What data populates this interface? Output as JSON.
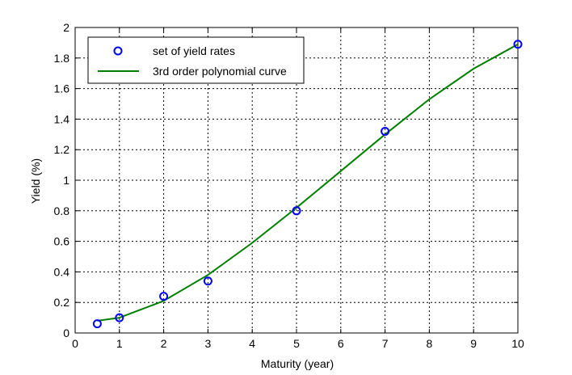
{
  "chart_data": {
    "type": "scatter",
    "xlabel": "Maturity (year)",
    "ylabel": "Yield (%)",
    "xlim": [
      0,
      10
    ],
    "ylim": [
      0,
      2
    ],
    "x_ticks": [
      0,
      1,
      2,
      3,
      4,
      5,
      6,
      7,
      8,
      9,
      10
    ],
    "y_ticks": [
      0,
      0.2,
      0.4,
      0.6,
      0.8,
      1,
      1.2,
      1.4,
      1.6,
      1.8,
      2
    ],
    "x_tick_labels": [
      "0",
      "1",
      "2",
      "3",
      "4",
      "5",
      "6",
      "7",
      "8",
      "9",
      "10"
    ],
    "y_tick_labels": [
      "0",
      "0.2",
      "0.4",
      "0.6",
      "0.8",
      "1",
      "1.2",
      "1.4",
      "1.6",
      "1.8",
      "2"
    ],
    "grid": true,
    "legend_position": "top-left",
    "series": [
      {
        "name": "set of yield rates",
        "kind": "markers",
        "marker": "circle",
        "color": "#0000ff",
        "x": [
          0.5,
          1,
          2,
          3,
          5,
          7,
          10
        ],
        "y": [
          0.06,
          0.1,
          0.24,
          0.34,
          0.8,
          1.32,
          1.89
        ]
      },
      {
        "name": "3rd order polynomial curve",
        "kind": "line",
        "color": "#007f00",
        "x": [
          0.5,
          1,
          2,
          3,
          4,
          5,
          6,
          7,
          8,
          9,
          10
        ],
        "y": [
          0.08,
          0.1,
          0.21,
          0.38,
          0.59,
          0.82,
          1.06,
          1.3,
          1.53,
          1.73,
          1.89
        ]
      }
    ]
  }
}
